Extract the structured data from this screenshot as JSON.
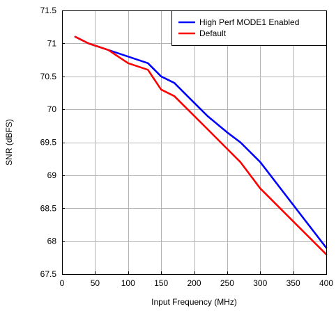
{
  "chart_data": {
    "type": "line",
    "title": "",
    "xlabel": "Input Frequency (MHz)",
    "ylabel": "SNR (dBFS)",
    "xlim": [
      0,
      400
    ],
    "ylim": [
      67.5,
      71.5
    ],
    "x_ticks": [
      0,
      50,
      100,
      150,
      200,
      250,
      300,
      350,
      400
    ],
    "x_tick_labels": [
      "0",
      "50",
      "100",
      "150",
      "200",
      "250",
      "300",
      "350",
      "400"
    ],
    "y_ticks": [
      67.5,
      68,
      68.5,
      69,
      69.5,
      70,
      70.5,
      71,
      71.5
    ],
    "y_tick_labels": [
      "67.5",
      "68",
      "68.5",
      "69",
      "69.5",
      "70",
      "70.5",
      "71",
      "71.5"
    ],
    "grid": true,
    "legend_position": "top-right",
    "series": [
      {
        "name": "High Perf MODE1 Enabled",
        "color": "#0000ff",
        "x": [
          20,
          40,
          70,
          100,
          130,
          150,
          170,
          190,
          220,
          250,
          270,
          300,
          350,
          400
        ],
        "y": [
          71.1,
          71.0,
          70.9,
          70.8,
          70.7,
          70.5,
          70.4,
          70.2,
          69.9,
          69.65,
          69.5,
          69.2,
          68.55,
          67.9
        ]
      },
      {
        "name": "Default",
        "color": "#ff0000",
        "x": [
          20,
          40,
          70,
          100,
          130,
          150,
          170,
          190,
          220,
          250,
          270,
          300,
          350,
          400
        ],
        "y": [
          71.1,
          71.0,
          70.9,
          70.7,
          70.6,
          70.3,
          70.2,
          70.0,
          69.7,
          69.4,
          69.2,
          68.8,
          68.3,
          67.8
        ]
      }
    ]
  }
}
